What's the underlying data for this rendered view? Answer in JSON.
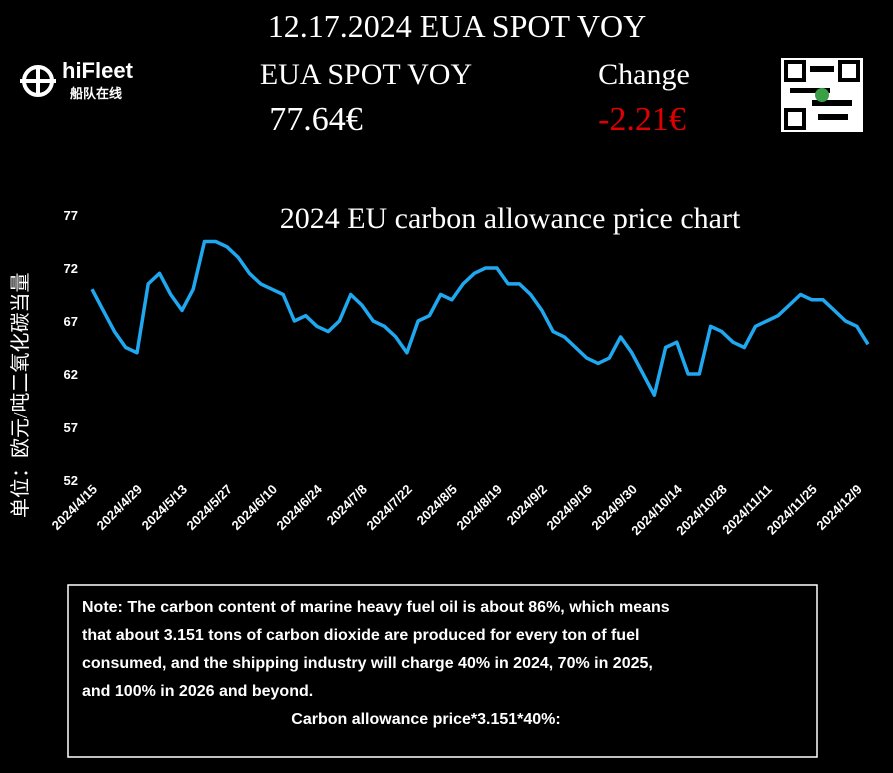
{
  "header": {
    "title": "12.17.2024 EUA SPOT VOY",
    "price_label": "EUA SPOT VOY",
    "price_value": "77.64€",
    "change_label": "Change",
    "change_value": "-2.21€"
  },
  "logo": {
    "name": "hiFleet",
    "subtitle": "船队在线"
  },
  "chart_data": {
    "type": "line",
    "title": "2024 EU carbon allowance price chart",
    "ylabel": "单位：欧元/吨二氧化碳当量",
    "categories": [
      "2024/4/15",
      null,
      null,
      null,
      "2024/4/29",
      null,
      null,
      null,
      "2024/5/13",
      null,
      null,
      null,
      "2024/5/27",
      null,
      null,
      null,
      "2024/6/10",
      null,
      null,
      null,
      "2024/6/24",
      null,
      null,
      null,
      "2024/7/8",
      null,
      null,
      null,
      "2024/7/22",
      null,
      null,
      null,
      "2024/8/5",
      null,
      null,
      null,
      "2024/8/19",
      null,
      null,
      null,
      "2024/9/2",
      null,
      null,
      null,
      "2024/9/16",
      null,
      null,
      null,
      "2024/9/30",
      null,
      null,
      null,
      "2024/10/14",
      null,
      null,
      null,
      "2024/10/28",
      null,
      null,
      null,
      "2024/11/11",
      null,
      null,
      null,
      "2024/11/25",
      null,
      null,
      null,
      "2024/12/9",
      null
    ],
    "values": [
      70,
      68,
      66,
      64.5,
      64,
      70.5,
      71.5,
      69.5,
      68,
      70,
      74.5,
      74.5,
      74,
      73,
      71.5,
      70.5,
      70,
      69.5,
      67,
      67.5,
      66.5,
      66,
      67,
      69.5,
      68.5,
      67,
      66.5,
      65.5,
      64,
      67,
      67.5,
      69.5,
      69,
      70.5,
      71.5,
      72,
      72,
      70.5,
      70.5,
      69.5,
      68,
      66,
      65.5,
      64.5,
      63.5,
      63,
      63.5,
      65.5,
      64,
      62,
      60,
      64.5,
      65,
      62,
      62,
      66.5,
      66,
      65,
      64.5,
      66.5,
      67,
      67.5,
      68.5,
      69.5,
      69,
      69,
      68,
      67,
      66.5,
      64.8
    ],
    "color": "#1fa8f0",
    "ylim": [
      52,
      77
    ],
    "yticks": [
      52,
      57,
      62,
      67,
      72,
      77
    ]
  },
  "note": {
    "lines": [
      "Note: The carbon content of marine heavy fuel oil is about 86%, which means",
      "that about 3.151 tons of carbon dioxide are produced for every ton of fuel",
      "consumed, and the shipping industry will charge 40% in 2024, 70% in 2025,",
      "and 100% in 2026 and beyond.",
      "Carbon allowance price*3.151*40%:"
    ]
  }
}
